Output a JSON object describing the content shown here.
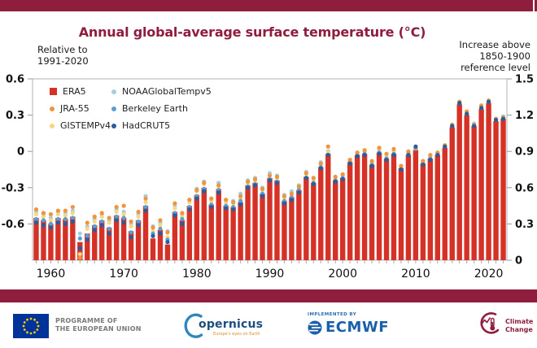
{
  "brand": {
    "maroon": "#8e1d3e",
    "bar_red": "#d63127",
    "axis_border": "#b3b3b3",
    "tick_color": "#999999",
    "tick_label_color": "#111111"
  },
  "chart": {
    "left_note_lines": [
      "Relative to",
      "1991-2020"
    ],
    "right_note_lines": [
      "Increase above",
      "1850-1900",
      "reference level"
    ]
  },
  "chart_data": {
    "type": "bar",
    "title": "Annual global-average surface temperature (°C)",
    "x_start": 1958,
    "x_end": 2022,
    "x_tick_labels": [
      "1960",
      "1970",
      "1980",
      "1990",
      "2000",
      "2010",
      "2020"
    ],
    "left_axis": {
      "context": "Relative to 1991-2020",
      "tick_labels": [
        "0.6",
        "0.3",
        "0",
        "-0.3",
        "-0.6"
      ],
      "tick_values": [
        0.6,
        0.3,
        0,
        -0.3,
        -0.6
      ],
      "range": [
        -0.9,
        0.6
      ]
    },
    "right_axis": {
      "context": "Increase above 1850-1900 reference level",
      "tick_labels": [
        "1.5",
        "1.2",
        "0.9",
        "0.6",
        "0.3",
        "0"
      ],
      "tick_values": [
        1.5,
        1.2,
        0.9,
        0.6,
        0.3,
        0
      ],
      "range": [
        0,
        1.5
      ],
      "offset_from_left_axis": 0.9
    },
    "bar_baseline_left_value": -0.9,
    "grid": false,
    "legend_position": "top-left-inside",
    "series": [
      {
        "name": "ERA5",
        "marker": "bar",
        "color": "#d63127",
        "values": [
          -0.55,
          -0.57,
          -0.6,
          -0.55,
          -0.56,
          -0.54,
          -0.75,
          -0.68,
          -0.61,
          -0.57,
          -0.63,
          -0.53,
          -0.55,
          -0.66,
          -0.57,
          -0.45,
          -0.72,
          -0.65,
          -0.77,
          -0.5,
          -0.57,
          -0.45,
          -0.36,
          -0.3,
          -0.44,
          -0.31,
          -0.45,
          -0.46,
          -0.42,
          -0.28,
          -0.26,
          -0.35,
          -0.22,
          -0.24,
          -0.41,
          -0.38,
          -0.32,
          -0.21,
          -0.26,
          -0.13,
          -0.02,
          -0.24,
          -0.22,
          -0.09,
          -0.03,
          -0.02,
          -0.11,
          -0.01,
          -0.06,
          -0.02,
          -0.14,
          -0.03,
          0.01,
          -0.1,
          -0.06,
          -0.03,
          0.03,
          0.2,
          0.39,
          0.3,
          0.21,
          0.35,
          0.4,
          0.25,
          0.27
        ]
      },
      {
        "name": "JRA-55",
        "marker": "dot",
        "color": "#f0943d",
        "values": [
          -0.48,
          -0.51,
          -0.52,
          -0.49,
          -0.49,
          -0.46,
          -0.88,
          -0.59,
          -0.54,
          -0.51,
          -0.55,
          -0.46,
          -0.45,
          -0.58,
          -0.5,
          -0.39,
          -0.63,
          -0.57,
          -0.67,
          -0.43,
          -0.51,
          -0.4,
          -0.32,
          -0.26,
          -0.39,
          -0.28,
          -0.4,
          -0.42,
          -0.37,
          -0.25,
          -0.23,
          -0.31,
          -0.2,
          -0.21,
          -0.37,
          -0.35,
          -0.29,
          -0.18,
          -0.22,
          -0.1,
          0.04,
          -0.21,
          -0.19,
          -0.07,
          -0.01,
          0.01,
          -0.08,
          0.03,
          -0.02,
          0.02,
          -0.12,
          0.0,
          0.03,
          -0.08,
          -0.03,
          -0.01,
          0.05,
          0.22,
          0.41,
          0.33,
          0.22,
          0.38,
          0.42,
          0.27,
          0.28
        ]
      },
      {
        "name": "GISTEMPv4",
        "marker": "dot",
        "color": "#f9d77e",
        "values": [
          -0.52,
          -0.54,
          -0.57,
          -0.52,
          -0.53,
          -0.51,
          -0.85,
          -0.64,
          -0.58,
          -0.54,
          -0.59,
          -0.5,
          -0.52,
          -0.62,
          -0.54,
          -0.42,
          -0.66,
          -0.61,
          -0.71,
          -0.47,
          -0.54,
          -0.42,
          -0.33,
          -0.27,
          -0.41,
          -0.29,
          -0.42,
          -0.43,
          -0.39,
          -0.26,
          -0.24,
          -0.32,
          -0.2,
          -0.22,
          -0.38,
          -0.36,
          -0.3,
          -0.19,
          -0.24,
          -0.11,
          -0.01,
          -0.22,
          -0.2,
          -0.08,
          -0.01,
          0.0,
          -0.09,
          0.01,
          -0.04,
          0.0,
          -0.12,
          -0.01,
          0.03,
          -0.08,
          -0.04,
          -0.01,
          0.05,
          0.21,
          0.4,
          0.32,
          0.22,
          0.36,
          0.41,
          0.26,
          0.28
        ]
      },
      {
        "name": "NOAAGlobalTempv5",
        "marker": "dot",
        "color": "#a6cee3",
        "values": [
          -0.5,
          -0.52,
          -0.55,
          -0.5,
          -0.51,
          -0.49,
          -0.68,
          -0.62,
          -0.56,
          -0.52,
          -0.57,
          -0.48,
          -0.5,
          -0.6,
          -0.52,
          -0.37,
          -0.62,
          -0.59,
          -0.66,
          -0.45,
          -0.52,
          -0.4,
          -0.31,
          -0.25,
          -0.39,
          -0.26,
          -0.4,
          -0.41,
          -0.35,
          -0.24,
          -0.22,
          -0.3,
          -0.18,
          -0.2,
          -0.36,
          -0.33,
          -0.28,
          -0.17,
          -0.22,
          -0.09,
          0.0,
          -0.21,
          -0.19,
          -0.07,
          -0.01,
          0.0,
          -0.09,
          0.01,
          -0.04,
          0.0,
          -0.12,
          -0.01,
          0.03,
          -0.08,
          -0.04,
          -0.01,
          0.05,
          0.22,
          0.41,
          0.32,
          0.23,
          0.37,
          0.42,
          0.27,
          0.29
        ]
      },
      {
        "name": "Berkeley Earth",
        "marker": "dot",
        "color": "#5a9fd4",
        "values": [
          -0.56,
          -0.57,
          -0.6,
          -0.56,
          -0.56,
          -0.55,
          -0.72,
          -0.7,
          -0.62,
          -0.58,
          -0.64,
          -0.54,
          -0.55,
          -0.67,
          -0.58,
          -0.46,
          -0.68,
          -0.64,
          -0.73,
          -0.51,
          -0.56,
          -0.46,
          -0.37,
          -0.31,
          -0.44,
          -0.32,
          -0.45,
          -0.46,
          -0.41,
          -0.29,
          -0.27,
          -0.35,
          -0.23,
          -0.25,
          -0.41,
          -0.38,
          -0.32,
          -0.22,
          -0.26,
          -0.13,
          -0.03,
          -0.24,
          -0.22,
          -0.09,
          -0.03,
          -0.02,
          -0.11,
          -0.01,
          -0.06,
          -0.02,
          -0.14,
          -0.02,
          0.02,
          -0.1,
          -0.06,
          -0.02,
          0.04,
          0.21,
          0.4,
          0.31,
          0.22,
          0.36,
          0.41,
          0.26,
          0.28
        ]
      },
      {
        "name": "HadCRUT5",
        "marker": "dot",
        "color": "#2b5d9b",
        "values": [
          -0.59,
          -0.61,
          -0.63,
          -0.59,
          -0.6,
          -0.58,
          -0.8,
          -0.73,
          -0.65,
          -0.61,
          -0.68,
          -0.57,
          -0.59,
          -0.71,
          -0.61,
          -0.49,
          -0.7,
          -0.68,
          -0.75,
          -0.53,
          -0.6,
          -0.48,
          -0.39,
          -0.33,
          -0.46,
          -0.34,
          -0.47,
          -0.48,
          -0.44,
          -0.3,
          -0.28,
          -0.37,
          -0.24,
          -0.26,
          -0.43,
          -0.4,
          -0.34,
          -0.22,
          -0.27,
          -0.14,
          -0.03,
          -0.25,
          -0.23,
          -0.1,
          -0.04,
          -0.03,
          -0.12,
          -0.02,
          -0.07,
          -0.03,
          -0.15,
          -0.03,
          0.04,
          -0.11,
          -0.07,
          -0.03,
          0.04,
          0.21,
          0.4,
          0.31,
          0.21,
          0.36,
          0.41,
          0.26,
          0.27
        ]
      }
    ]
  },
  "legend": {
    "col1": [
      {
        "label": "ERA5",
        "color": "#d63127",
        "marker": "square"
      },
      {
        "label": "JRA-55",
        "color": "#f0943d",
        "marker": "dot"
      },
      {
        "label": "GISTEMPv4",
        "color": "#f9d77e",
        "marker": "dot"
      }
    ],
    "col2": [
      {
        "label": "NOAAGlobalTempv5",
        "color": "#a6cee3",
        "marker": "dot"
      },
      {
        "label": "Berkeley Earth",
        "color": "#5a9fd4",
        "marker": "dot"
      },
      {
        "label": "HadCRUT5",
        "color": "#2b5d9b",
        "marker": "dot"
      }
    ]
  },
  "footer": {
    "eu_programme_lines": [
      "PROGRAMME OF",
      "THE EUROPEAN UNION"
    ],
    "copernicus_word": "opernicus",
    "copernicus_tagline": "Europe's eyes on Earth",
    "implemented_by": "IMPLEMENTED BY",
    "ecmwf": "ECMWF",
    "climate_lines": [
      "Climate",
      "Change"
    ]
  }
}
